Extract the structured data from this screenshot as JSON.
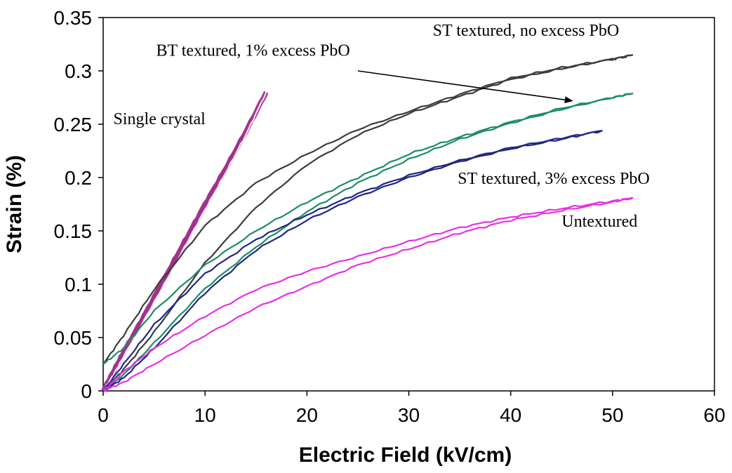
{
  "chart_data": {
    "type": "line",
    "xlabel": "Electric Field (kV/cm)",
    "ylabel": "Strain (%)",
    "xlim": [
      0,
      60
    ],
    "ylim": [
      0,
      0.35
    ],
    "xticks": [
      "0",
      "10",
      "20",
      "30",
      "40",
      "50",
      "60"
    ],
    "yticks": [
      "0",
      "0.05",
      "0.1",
      "0.15",
      "0.2",
      "0.25",
      "0.3",
      "0.35"
    ],
    "grid": false,
    "legend": "none (series identified by in-plot annotations)",
    "series": [
      {
        "name": "Single crystal",
        "color": "#a0328c",
        "upper": [
          [
            0,
            0.0
          ],
          [
            1,
            0.018
          ],
          [
            2,
            0.036
          ],
          [
            4,
            0.07
          ],
          [
            6,
            0.105
          ],
          [
            8,
            0.14
          ],
          [
            10,
            0.175
          ],
          [
            12,
            0.208
          ],
          [
            14,
            0.243
          ],
          [
            16,
            0.28
          ]
        ],
        "lower": [
          [
            0,
            0.0
          ],
          [
            1,
            0.015
          ],
          [
            2,
            0.032
          ],
          [
            4,
            0.066
          ],
          [
            6,
            0.1
          ],
          [
            8,
            0.135
          ],
          [
            10,
            0.17
          ],
          [
            12,
            0.204
          ],
          [
            14,
            0.24
          ],
          [
            16,
            0.28
          ]
        ]
      },
      {
        "name": "ST textured, no excess PbO",
        "color": "#3c3c3c",
        "upper": [
          [
            0,
            0.025
          ],
          [
            2,
            0.052
          ],
          [
            5,
            0.095
          ],
          [
            10,
            0.155
          ],
          [
            15,
            0.195
          ],
          [
            20,
            0.222
          ],
          [
            25,
            0.245
          ],
          [
            30,
            0.262
          ],
          [
            35,
            0.278
          ],
          [
            40,
            0.293
          ],
          [
            45,
            0.303
          ],
          [
            50,
            0.311
          ],
          [
            52,
            0.315
          ]
        ],
        "lower": [
          [
            0,
            0.0
          ],
          [
            2,
            0.02
          ],
          [
            5,
            0.055
          ],
          [
            10,
            0.12
          ],
          [
            15,
            0.172
          ],
          [
            20,
            0.212
          ],
          [
            25,
            0.24
          ],
          [
            30,
            0.26
          ],
          [
            35,
            0.276
          ],
          [
            40,
            0.292
          ],
          [
            45,
            0.302
          ],
          [
            50,
            0.311
          ],
          [
            52,
            0.315
          ]
        ]
      },
      {
        "name": "BT textured, 1% excess PbO",
        "color": "#1e8c64",
        "upper": [
          [
            0,
            0.025
          ],
          [
            2,
            0.04
          ],
          [
            5,
            0.075
          ],
          [
            10,
            0.118
          ],
          [
            15,
            0.15
          ],
          [
            20,
            0.177
          ],
          [
            25,
            0.2
          ],
          [
            30,
            0.222
          ],
          [
            35,
            0.238
          ],
          [
            40,
            0.252
          ],
          [
            45,
            0.265
          ],
          [
            50,
            0.275
          ],
          [
            52,
            0.279
          ]
        ],
        "lower": [
          [
            0,
            0.0
          ],
          [
            2,
            0.015
          ],
          [
            5,
            0.045
          ],
          [
            10,
            0.096
          ],
          [
            15,
            0.135
          ],
          [
            20,
            0.168
          ],
          [
            25,
            0.195
          ],
          [
            30,
            0.217
          ],
          [
            35,
            0.236
          ],
          [
            40,
            0.251
          ],
          [
            45,
            0.264
          ],
          [
            50,
            0.275
          ],
          [
            52,
            0.279
          ]
        ]
      },
      {
        "name": "ST textured, 3% excess PbO",
        "color": "#1e2882",
        "upper": [
          [
            0,
            0.0
          ],
          [
            2,
            0.025
          ],
          [
            5,
            0.062
          ],
          [
            10,
            0.11
          ],
          [
            15,
            0.142
          ],
          [
            20,
            0.165
          ],
          [
            25,
            0.185
          ],
          [
            30,
            0.202
          ],
          [
            35,
            0.216
          ],
          [
            40,
            0.228
          ],
          [
            45,
            0.237
          ],
          [
            49,
            0.244
          ]
        ],
        "lower": [
          [
            0,
            0.0
          ],
          [
            2,
            0.012
          ],
          [
            5,
            0.04
          ],
          [
            10,
            0.092
          ],
          [
            15,
            0.132
          ],
          [
            20,
            0.16
          ],
          [
            25,
            0.182
          ],
          [
            30,
            0.2
          ],
          [
            35,
            0.215
          ],
          [
            40,
            0.227
          ],
          [
            45,
            0.236
          ],
          [
            49,
            0.244
          ]
        ]
      },
      {
        "name": "Untextured",
        "color": "#e632e6",
        "upper": [
          [
            0,
            0.0
          ],
          [
            2,
            0.018
          ],
          [
            5,
            0.04
          ],
          [
            10,
            0.07
          ],
          [
            15,
            0.095
          ],
          [
            20,
            0.112
          ],
          [
            25,
            0.126
          ],
          [
            30,
            0.14
          ],
          [
            35,
            0.153
          ],
          [
            40,
            0.163
          ],
          [
            45,
            0.171
          ],
          [
            50,
            0.178
          ],
          [
            52,
            0.181
          ]
        ],
        "lower": [
          [
            0,
            0.0
          ],
          [
            2,
            0.008
          ],
          [
            5,
            0.025
          ],
          [
            10,
            0.052
          ],
          [
            15,
            0.078
          ],
          [
            20,
            0.098
          ],
          [
            25,
            0.118
          ],
          [
            30,
            0.133
          ],
          [
            35,
            0.148
          ],
          [
            40,
            0.16
          ],
          [
            45,
            0.169
          ],
          [
            50,
            0.177
          ],
          [
            52,
            0.181
          ]
        ]
      }
    ],
    "annotations": [
      {
        "text": "ST textured, no excess PbO",
        "x": 41.5,
        "y": 0.333,
        "align": "middle"
      },
      {
        "text": "BT textured, 1% excess PbO",
        "x": 5.2,
        "y": 0.314,
        "align": "start"
      },
      {
        "text": "Single crystal",
        "x": 1.0,
        "y": 0.25,
        "align": "start"
      },
      {
        "text": "ST textured, 3% excess PbO",
        "x": 34.8,
        "y": 0.194,
        "align": "start"
      },
      {
        "text": "Untextured",
        "x": 45.0,
        "y": 0.154,
        "align": "start"
      }
    ],
    "arrow": {
      "from": [
        25,
        0.3
      ],
      "to": [
        46,
        0.272
      ]
    }
  }
}
